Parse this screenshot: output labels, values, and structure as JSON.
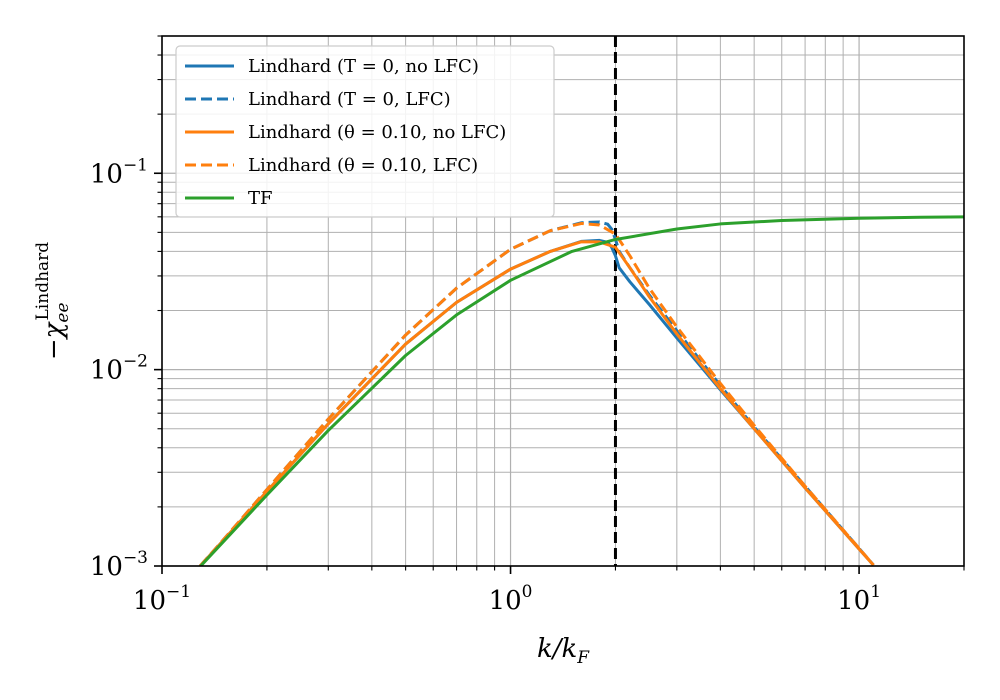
{
  "chart_data": {
    "type": "line",
    "xlabel": "k/k_F",
    "ylabel": "−χ_ee^Lindhard",
    "xscale": "log",
    "yscale": "log",
    "xlim": [
      0.1,
      20
    ],
    "ylim": [
      0.001,
      0.5
    ],
    "grid": true,
    "legend_position": "top-left",
    "x_ticks": [
      {
        "value": 0.1,
        "base": "10",
        "exp": "−1"
      },
      {
        "value": 1,
        "base": "10",
        "exp": "0"
      },
      {
        "value": 10,
        "base": "10",
        "exp": "1"
      }
    ],
    "y_ticks": [
      {
        "value": 0.001,
        "base": "10",
        "exp": "−3"
      },
      {
        "value": 0.01,
        "base": "10",
        "exp": "−2"
      },
      {
        "value": 0.1,
        "base": "10",
        "exp": "−1"
      }
    ],
    "vline": {
      "x": 2.0,
      "color": "#000000",
      "dashed": true
    },
    "series": [
      {
        "name": "Lindhard (T = 0, no LFC)",
        "color": "#1f77b4",
        "dashed": false,
        "x": [
          0.12,
          0.15,
          0.2,
          0.3,
          0.5,
          0.7,
          1.0,
          1.3,
          1.6,
          1.8,
          1.9,
          1.95,
          2.0,
          2.05,
          2.2,
          2.5,
          3,
          4,
          5,
          7,
          10,
          11
        ],
        "y": [
          0.00087,
          0.00135,
          0.0024,
          0.0053,
          0.0135,
          0.022,
          0.0325,
          0.04,
          0.045,
          0.0455,
          0.0445,
          0.042,
          0.038,
          0.033,
          0.028,
          0.0215,
          0.0145,
          0.0079,
          0.005,
          0.0025,
          0.00122,
          0.00101
        ]
      },
      {
        "name": "Lindhard (T = 0, LFC)",
        "color": "#1f77b4",
        "dashed": true,
        "x": [
          0.12,
          0.15,
          0.2,
          0.3,
          0.5,
          0.7,
          1.0,
          1.3,
          1.6,
          1.8,
          1.9,
          1.95,
          2.0,
          2.05,
          2.2,
          2.5,
          3,
          4,
          5,
          7,
          10,
          11
        ],
        "y": [
          0.00087,
          0.00136,
          0.00245,
          0.0056,
          0.015,
          0.026,
          0.041,
          0.051,
          0.056,
          0.0565,
          0.055,
          0.052,
          0.046,
          0.04,
          0.033,
          0.024,
          0.0158,
          0.0083,
          0.0051,
          0.00255,
          0.00123,
          0.00101
        ]
      },
      {
        "name": "Lindhard (θ = 0.10, no LFC)",
        "color": "#ff7f0e",
        "dashed": false,
        "x": [
          0.12,
          0.15,
          0.2,
          0.3,
          0.5,
          0.7,
          1.0,
          1.3,
          1.6,
          1.8,
          2.0,
          2.2,
          2.5,
          3,
          4,
          5,
          7,
          10,
          11
        ],
        "y": [
          0.00087,
          0.00135,
          0.0024,
          0.0053,
          0.0135,
          0.022,
          0.0325,
          0.04,
          0.0448,
          0.0447,
          0.042,
          0.033,
          0.0235,
          0.0152,
          0.008,
          0.005,
          0.0025,
          0.00122,
          0.00101
        ]
      },
      {
        "name": "Lindhard (θ = 0.10, LFC)",
        "color": "#ff7f0e",
        "dashed": true,
        "x": [
          0.12,
          0.15,
          0.2,
          0.3,
          0.5,
          0.7,
          1.0,
          1.3,
          1.6,
          1.8,
          2.0,
          2.2,
          2.5,
          3,
          4,
          5,
          7,
          10,
          11
        ],
        "y": [
          0.00087,
          0.00136,
          0.00245,
          0.0056,
          0.015,
          0.026,
          0.041,
          0.051,
          0.0555,
          0.0545,
          0.049,
          0.038,
          0.026,
          0.0165,
          0.0085,
          0.0052,
          0.00255,
          0.00123,
          0.00101
        ]
      },
      {
        "name": "TF",
        "color": "#2ca02c",
        "dashed": false,
        "x": [
          0.12,
          0.15,
          0.2,
          0.3,
          0.5,
          0.7,
          1.0,
          1.5,
          2,
          3,
          4,
          6,
          10,
          15,
          20
        ],
        "y": [
          0.00087,
          0.00133,
          0.0023,
          0.0049,
          0.0118,
          0.019,
          0.0285,
          0.04,
          0.046,
          0.052,
          0.0552,
          0.0575,
          0.059,
          0.0597,
          0.06
        ]
      }
    ]
  }
}
